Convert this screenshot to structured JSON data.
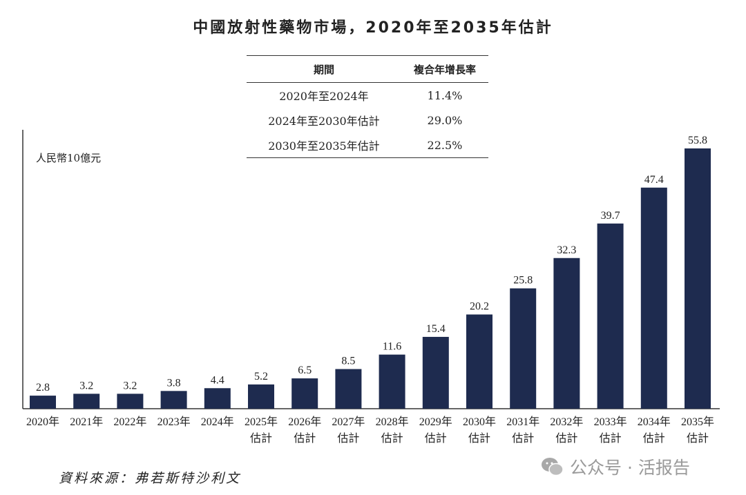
{
  "chart_data": {
    "type": "bar",
    "title": "中國放射性藥物市場，2020年至2035年估計",
    "ylabel": "人民幣10億元",
    "categories": [
      "2020年",
      "2021年",
      "2022年",
      "2023年",
      "2024年",
      "2025年",
      "2026年",
      "2027年",
      "2028年",
      "2029年",
      "2030年",
      "2031年",
      "2032年",
      "2033年",
      "2034年",
      "2035年"
    ],
    "category_sublabels": [
      "",
      "",
      "",
      "",
      "",
      "估計",
      "估計",
      "估計",
      "估計",
      "估計",
      "估計",
      "估計",
      "估計",
      "估計",
      "估計",
      "估計"
    ],
    "values": [
      2.8,
      3.2,
      3.2,
      3.8,
      4.4,
      5.2,
      6.5,
      8.5,
      11.6,
      15.4,
      20.2,
      25.8,
      32.3,
      39.7,
      47.4,
      55.8
    ],
    "ylim": [
      0,
      60
    ],
    "grid": false,
    "bar_color": "#1e2b4f",
    "cagr_table": {
      "headers": [
        "期間",
        "複合年增長率"
      ],
      "rows": [
        [
          "2020年至2024年",
          "11.4%"
        ],
        [
          "2024年至2030年估計",
          "29.0%"
        ],
        [
          "2030年至2035年估計",
          "22.5%"
        ]
      ]
    }
  },
  "source": "資料來源：弗若斯特沙利文",
  "watermark": {
    "icon": "wechat-icon",
    "text": "公众号 · 活报告"
  }
}
